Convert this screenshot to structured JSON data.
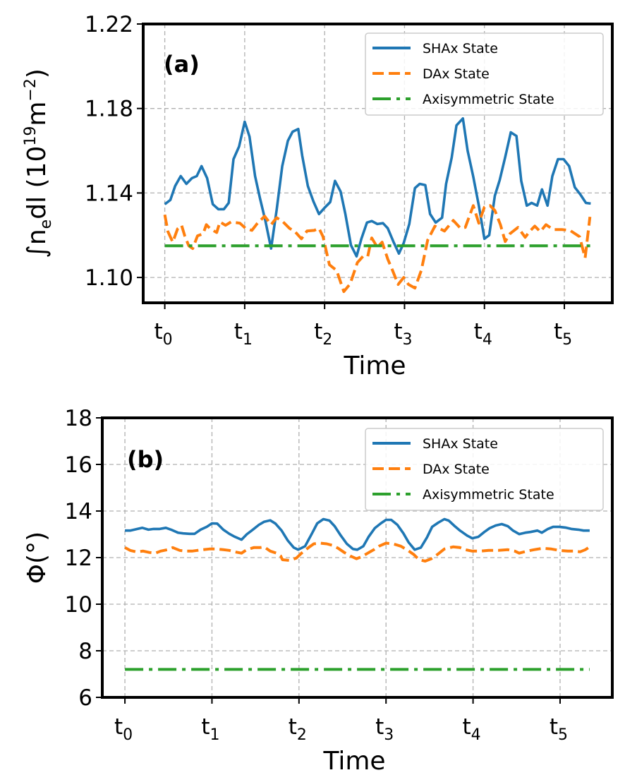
{
  "chart_data": [
    {
      "type": "line",
      "panel_tag": "(a)",
      "xlabel": "Time",
      "ylabel": "∫n_e dl (10^19 m^-2)",
      "ylabel_parts": {
        "integral": "∫",
        "n": "n",
        "n_sub": "e",
        "dl": "dl (10",
        "exp1": "19",
        "m": "m",
        "exp2": "−2",
        "close": ")"
      },
      "xticks": [
        0,
        1,
        2,
        3,
        4,
        5
      ],
      "xtick_labels": [
        {
          "base": "t",
          "sub": "0"
        },
        {
          "base": "t",
          "sub": "1"
        },
        {
          "base": "t",
          "sub": "2"
        },
        {
          "base": "t",
          "sub": "3"
        },
        {
          "base": "t",
          "sub": "4"
        },
        {
          "base": "t",
          "sub": "5"
        }
      ],
      "yticks": [
        1.1,
        1.14,
        1.18,
        1.22
      ],
      "ytick_labels": [
        "1.10",
        "1.14",
        "1.18",
        "1.22"
      ],
      "xlim": [
        -0.27,
        5.6
      ],
      "ylim": [
        1.088,
        1.22
      ],
      "grid": true,
      "legend_position": "top-right",
      "series": [
        {
          "name": "SHAx State",
          "color": "#1f77b4",
          "style": "solid",
          "x": [
            0.0,
            0.07,
            0.13,
            0.2,
            0.27,
            0.34,
            0.4,
            0.46,
            0.53,
            0.6,
            0.67,
            0.74,
            0.8,
            0.86,
            0.93,
            1.0,
            1.06,
            1.13,
            1.19,
            1.26,
            1.33,
            1.4,
            1.47,
            1.54,
            1.6,
            1.67,
            1.72,
            1.79,
            1.86,
            1.93,
            2.0,
            2.07,
            2.13,
            2.2,
            2.26,
            2.33,
            2.4,
            2.46,
            2.53,
            2.59,
            2.66,
            2.73,
            2.79,
            2.86,
            2.93,
            2.99,
            3.06,
            3.13,
            3.19,
            3.26,
            3.32,
            3.39,
            3.47,
            3.52,
            3.59,
            3.65,
            3.73,
            3.79,
            3.86,
            3.93,
            4.0,
            4.06,
            4.13,
            4.19,
            4.26,
            4.33,
            4.4,
            4.46,
            4.53,
            4.59,
            4.66,
            4.72,
            4.79,
            4.85,
            4.92,
            4.99,
            5.06,
            5.13,
            5.2,
            5.27,
            5.33
          ],
          "y": [
            1.1347,
            1.1367,
            1.1433,
            1.148,
            1.1443,
            1.147,
            1.148,
            1.1527,
            1.147,
            1.1347,
            1.1323,
            1.1323,
            1.1353,
            1.156,
            1.162,
            1.1737,
            1.1667,
            1.148,
            1.1377,
            1.1267,
            1.1137,
            1.132,
            1.1527,
            1.1647,
            1.169,
            1.1703,
            1.1577,
            1.1433,
            1.136,
            1.13,
            1.133,
            1.1357,
            1.1457,
            1.1407,
            1.13,
            1.1153,
            1.11,
            1.1183,
            1.126,
            1.1267,
            1.1253,
            1.1257,
            1.1233,
            1.117,
            1.1113,
            1.1163,
            1.1253,
            1.1423,
            1.1443,
            1.1437,
            1.13,
            1.126,
            1.1283,
            1.1443,
            1.1567,
            1.172,
            1.1753,
            1.16,
            1.1477,
            1.134,
            1.1183,
            1.12,
            1.1387,
            1.146,
            1.157,
            1.1687,
            1.167,
            1.1457,
            1.134,
            1.1353,
            1.134,
            1.1417,
            1.134,
            1.148,
            1.156,
            1.156,
            1.1527,
            1.1427,
            1.1393,
            1.1353,
            1.135
          ]
        },
        {
          "name": "DAx State",
          "color": "#ff7f0e",
          "style": "dashed",
          "x": [
            0.0,
            0.04,
            0.1,
            0.16,
            0.21,
            0.25,
            0.3,
            0.35,
            0.41,
            0.48,
            0.52,
            0.57,
            0.65,
            0.69,
            0.76,
            0.83,
            0.94,
            1.01,
            1.09,
            1.16,
            1.25,
            1.33,
            1.4,
            1.48,
            1.56,
            1.63,
            1.71,
            1.78,
            1.87,
            1.93,
            1.98,
            2.06,
            2.15,
            2.24,
            2.32,
            2.41,
            2.48,
            2.54,
            2.59,
            2.66,
            2.72,
            2.79,
            2.85,
            2.92,
            2.99,
            3.05,
            3.13,
            3.21,
            3.29,
            3.38,
            3.5,
            3.61,
            3.7,
            3.76,
            3.86,
            3.93,
            4.0,
            4.07,
            4.13,
            4.2,
            4.26,
            4.32,
            4.42,
            4.51,
            4.57,
            4.63,
            4.7,
            4.77,
            4.86,
            4.97,
            5.07,
            5.19,
            5.26,
            5.32
          ],
          "y": [
            1.1297,
            1.1217,
            1.1167,
            1.123,
            1.1247,
            1.1197,
            1.115,
            1.1137,
            1.1197,
            1.1207,
            1.125,
            1.123,
            1.1213,
            1.1263,
            1.1247,
            1.1263,
            1.1257,
            1.1233,
            1.1223,
            1.1257,
            1.129,
            1.125,
            1.1283,
            1.1263,
            1.1233,
            1.1217,
            1.1183,
            1.122,
            1.1223,
            1.1233,
            1.1193,
            1.106,
            1.1033,
            1.0933,
            1.097,
            1.107,
            1.11,
            1.11,
            1.1187,
            1.1143,
            1.1167,
            1.1087,
            1.1033,
            1.0967,
            1.1,
            1.0967,
            1.095,
            1.1033,
            1.1177,
            1.1243,
            1.122,
            1.127,
            1.1233,
            1.1237,
            1.134,
            1.1257,
            1.1333,
            1.134,
            1.1317,
            1.125,
            1.117,
            1.1207,
            1.1237,
            1.119,
            1.122,
            1.1243,
            1.1217,
            1.125,
            1.1227,
            1.1227,
            1.1223,
            1.1193,
            1.1093,
            1.1287
          ]
        },
        {
          "name": "Axisymmetric State",
          "color": "#2ca02c",
          "style": "dashdot",
          "x": [
            0.0,
            5.33
          ],
          "y": [
            1.115,
            1.115
          ]
        }
      ]
    },
    {
      "type": "line",
      "panel_tag": "(b)",
      "xlabel": "Time",
      "ylabel": "Φ(°)",
      "xticks": [
        0,
        1,
        2,
        3,
        4,
        5
      ],
      "xtick_labels": [
        {
          "base": "t",
          "sub": "0"
        },
        {
          "base": "t",
          "sub": "1"
        },
        {
          "base": "t",
          "sub": "2"
        },
        {
          "base": "t",
          "sub": "3"
        },
        {
          "base": "t",
          "sub": "4"
        },
        {
          "base": "t",
          "sub": "5"
        }
      ],
      "yticks": [
        6,
        8,
        10,
        12,
        14,
        16,
        18
      ],
      "ytick_labels": [
        "6",
        "8",
        "10",
        "12",
        "14",
        "16",
        "18"
      ],
      "xlim": [
        -0.26,
        5.6
      ],
      "ylim": [
        6,
        18
      ],
      "grid": true,
      "legend_position": "top-right",
      "series": [
        {
          "name": "SHAx State",
          "color": "#1f77b4",
          "style": "solid",
          "x": [
            0.0,
            0.06,
            0.13,
            0.2,
            0.27,
            0.33,
            0.4,
            0.47,
            0.53,
            0.61,
            0.67,
            0.74,
            0.8,
            0.87,
            0.94,
            1.0,
            1.06,
            1.13,
            1.2,
            1.26,
            1.34,
            1.4,
            1.47,
            1.54,
            1.6,
            1.67,
            1.73,
            1.8,
            1.87,
            1.94,
            1.99,
            2.07,
            2.15,
            2.21,
            2.28,
            2.35,
            2.41,
            2.48,
            2.55,
            2.62,
            2.67,
            2.74,
            2.8,
            2.87,
            2.94,
            3.0,
            3.06,
            3.13,
            3.2,
            3.26,
            3.33,
            3.4,
            3.47,
            3.53,
            3.6,
            3.67,
            3.72,
            3.79,
            3.85,
            3.93,
            3.99,
            4.06,
            4.13,
            4.19,
            4.26,
            4.33,
            4.4,
            4.46,
            4.53,
            4.6,
            4.66,
            4.74,
            4.79,
            4.86,
            4.92,
            4.99,
            5.06,
            5.13,
            5.21,
            5.27,
            5.34
          ],
          "y": [
            13.16,
            13.16,
            13.22,
            13.28,
            13.2,
            13.23,
            13.23,
            13.28,
            13.2,
            13.07,
            13.04,
            13.02,
            13.02,
            13.2,
            13.32,
            13.47,
            13.46,
            13.2,
            13.02,
            12.9,
            12.77,
            13.0,
            13.2,
            13.41,
            13.54,
            13.6,
            13.46,
            13.16,
            12.74,
            12.43,
            12.34,
            12.49,
            13.04,
            13.47,
            13.65,
            13.59,
            13.35,
            12.95,
            12.59,
            12.37,
            12.34,
            12.49,
            12.89,
            13.26,
            13.47,
            13.62,
            13.62,
            13.41,
            13.04,
            12.65,
            12.34,
            12.43,
            12.86,
            13.32,
            13.5,
            13.65,
            13.59,
            13.35,
            13.16,
            12.95,
            12.83,
            12.89,
            13.1,
            13.26,
            13.38,
            13.44,
            13.35,
            13.16,
            13.01,
            13.07,
            13.1,
            13.16,
            13.07,
            13.23,
            13.32,
            13.32,
            13.29,
            13.23,
            13.2,
            13.16,
            13.16
          ]
        },
        {
          "name": "DAx State",
          "color": "#ff7f0e",
          "style": "dashed",
          "x": [
            0.0,
            0.06,
            0.13,
            0.21,
            0.28,
            0.35,
            0.41,
            0.49,
            0.55,
            0.63,
            0.7,
            0.77,
            0.83,
            0.9,
            0.97,
            1.05,
            1.13,
            1.2,
            1.26,
            1.34,
            1.4,
            1.48,
            1.55,
            1.6,
            1.67,
            1.74,
            1.79,
            1.81,
            1.89,
            1.97,
            2.03,
            2.11,
            2.17,
            2.24,
            2.32,
            2.39,
            2.45,
            2.52,
            2.59,
            2.66,
            2.72,
            2.79,
            2.86,
            2.92,
            3.0,
            3.08,
            3.17,
            3.24,
            3.32,
            3.38,
            3.45,
            3.52,
            3.59,
            3.67,
            3.77,
            3.85,
            3.91,
            3.99,
            4.09,
            4.18,
            4.29,
            4.4,
            4.48,
            4.53,
            4.62,
            4.7,
            4.8,
            4.9,
            4.99,
            5.09,
            5.17,
            5.23,
            5.29,
            5.34
          ],
          "y": [
            12.43,
            12.31,
            12.25,
            12.28,
            12.22,
            12.19,
            12.28,
            12.34,
            12.43,
            12.31,
            12.28,
            12.28,
            12.31,
            12.34,
            12.37,
            12.37,
            12.34,
            12.31,
            12.25,
            12.19,
            12.34,
            12.43,
            12.43,
            12.46,
            12.28,
            12.19,
            12.07,
            11.91,
            11.88,
            11.98,
            12.19,
            12.43,
            12.59,
            12.62,
            12.59,
            12.52,
            12.4,
            12.22,
            12.07,
            11.95,
            12.04,
            12.19,
            12.34,
            12.49,
            12.62,
            12.59,
            12.49,
            12.34,
            12.13,
            11.91,
            11.85,
            11.95,
            12.13,
            12.37,
            12.46,
            12.43,
            12.34,
            12.28,
            12.28,
            12.31,
            12.31,
            12.34,
            12.28,
            12.19,
            12.28,
            12.34,
            12.4,
            12.37,
            12.31,
            12.28,
            12.28,
            12.25,
            12.34,
            12.46
          ]
        },
        {
          "name": "Axisymmetric State",
          "color": "#2ca02c",
          "style": "dashdot",
          "x": [
            0.0,
            5.34
          ],
          "y": [
            7.2,
            7.2
          ]
        }
      ]
    }
  ]
}
